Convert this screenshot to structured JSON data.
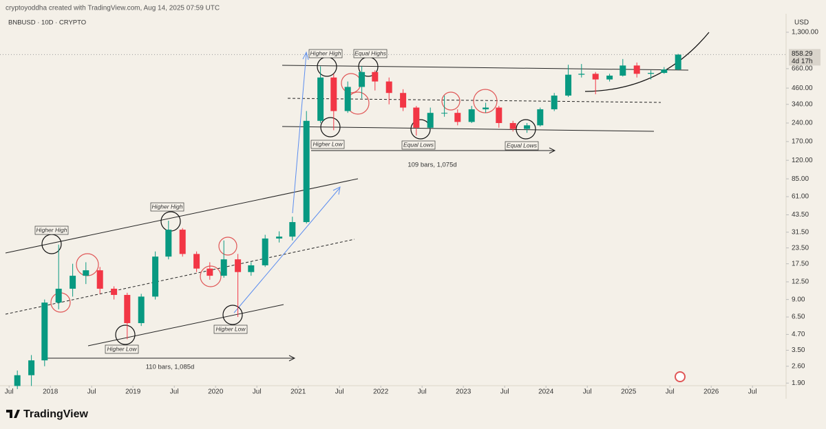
{
  "chart_data": {
    "type": "candlestick",
    "header": "cryptoyoddha created with TradingView.com, Aug 14, 2025 07:59 UTC",
    "title": "BNBUSD · 10D · CRYPTO",
    "currency": "USD",
    "brand": "TradingView",
    "last_price": 858.29,
    "countdown": "4d 17h",
    "log_scale": true,
    "up_color": "#089981",
    "down_color": "#f23645",
    "xlim": [
      2017.39,
      2026.89
    ],
    "ylim": [
      1.72,
      1420
    ],
    "xticks": [
      {
        "value": 2017.5,
        "label": "Jul"
      },
      {
        "value": 2018,
        "label": "2018"
      },
      {
        "value": 2018.5,
        "label": "Jul"
      },
      {
        "value": 2019,
        "label": "2019"
      },
      {
        "value": 2019.5,
        "label": "Jul"
      },
      {
        "value": 2020,
        "label": "2020"
      },
      {
        "value": 2020.5,
        "label": "Jul"
      },
      {
        "value": 2021,
        "label": "2021"
      },
      {
        "value": 2021.5,
        "label": "Jul"
      },
      {
        "value": 2022,
        "label": "2022"
      },
      {
        "value": 2022.5,
        "label": "Jul"
      },
      {
        "value": 2023,
        "label": "2023"
      },
      {
        "value": 2023.5,
        "label": "Jul"
      },
      {
        "value": 2024,
        "label": "2024"
      },
      {
        "value": 2024.5,
        "label": "Jul"
      },
      {
        "value": 2025,
        "label": "2025"
      },
      {
        "value": 2025.5,
        "label": "Jul"
      },
      {
        "value": 2026,
        "label": "2026"
      },
      {
        "value": 2026.5,
        "label": "Jul"
      }
    ],
    "yticks": [
      {
        "value": 1.9,
        "label": "1.90"
      },
      {
        "value": 2.6,
        "label": "2.60"
      },
      {
        "value": 3.5,
        "label": "3.50"
      },
      {
        "value": 4.7,
        "label": "4.70"
      },
      {
        "value": 6.5,
        "label": "6.50"
      },
      {
        "value": 9,
        "label": "9.00"
      },
      {
        "value": 12.5,
        "label": "12.50"
      },
      {
        "value": 17.5,
        "label": "17.50"
      },
      {
        "value": 23.5,
        "label": "23.50"
      },
      {
        "value": 31.5,
        "label": "31.50"
      },
      {
        "value": 43.5,
        "label": "43.50"
      },
      {
        "value": 61,
        "label": "61.00"
      },
      {
        "value": 85,
        "label": "85.00"
      },
      {
        "value": 120,
        "label": "120.00"
      },
      {
        "value": 170,
        "label": "170.00"
      },
      {
        "value": 240,
        "label": "240.00"
      },
      {
        "value": 340,
        "label": "340.00"
      },
      {
        "value": 460,
        "label": "460.00"
      },
      {
        "value": 660,
        "label": "660.00"
      },
      {
        "value": 1300,
        "label": "1,300.00"
      }
    ],
    "x": [
      2017.6,
      2017.77,
      2017.93,
      2018.1,
      2018.27,
      2018.43,
      2018.6,
      2018.77,
      2018.93,
      2019.1,
      2019.27,
      2019.43,
      2019.6,
      2019.77,
      2019.93,
      2020.1,
      2020.27,
      2020.43,
      2020.6,
      2020.77,
      2020.93,
      2021.1,
      2021.27,
      2021.43,
      2021.6,
      2021.77,
      2021.93,
      2022.1,
      2022.27,
      2022.43,
      2022.6,
      2022.77,
      2022.93,
      2023.1,
      2023.27,
      2023.43,
      2023.6,
      2023.77,
      2023.93,
      2024.1,
      2024.27,
      2024.43,
      2024.6,
      2024.77,
      2024.93,
      2025.1,
      2025.27,
      2025.43,
      2025.6
    ],
    "open": [
      1.8,
      2.2,
      2.9,
      8.5,
      11,
      14,
      15.5,
      11,
      9.8,
      5.8,
      9.5,
      20,
      33,
      21,
      16,
      14,
      19,
      15,
      17,
      28,
      29,
      38,
      250,
      560,
      300,
      470,
      620,
      520,
      420,
      320,
      220,
      290,
      290,
      245,
      310,
      320,
      240,
      215,
      230,
      310,
      400,
      590,
      600,
      540,
      580,
      700,
      600,
      610,
      650
    ],
    "high": [
      2.4,
      3.2,
      9,
      25,
      17.5,
      18,
      16.5,
      11.5,
      10.2,
      10,
      22,
      39,
      34,
      22,
      18,
      27,
      21,
      18,
      30,
      32,
      42,
      300,
      690,
      600,
      520,
      690,
      640,
      560,
      450,
      330,
      320,
      400,
      310,
      330,
      350,
      330,
      250,
      240,
      320,
      420,
      710,
      720,
      620,
      600,
      790,
      740,
      640,
      680,
      870
    ],
    "low": [
      1.7,
      1.8,
      2.6,
      7.5,
      9.5,
      12,
      10,
      9,
      4.3,
      5.5,
      9,
      19,
      20,
      15,
      13,
      13.5,
      6.5,
      14,
      16.5,
      26,
      27,
      37,
      240,
      210,
      290,
      380,
      440,
      340,
      300,
      190,
      215,
      270,
      230,
      240,
      290,
      220,
      205,
      200,
      225,
      300,
      390,
      560,
      410,
      520,
      570,
      560,
      540,
      600,
      640
    ],
    "close": [
      2.2,
      2.9,
      8.5,
      11,
      14,
      15.5,
      11,
      9.8,
      5.8,
      9.5,
      20,
      33,
      21,
      16,
      14,
      19,
      15,
      17,
      28,
      29,
      38,
      250,
      560,
      300,
      470,
      620,
      520,
      420,
      320,
      220,
      290,
      290,
      245,
      310,
      320,
      240,
      215,
      230,
      310,
      400,
      590,
      600,
      540,
      580,
      700,
      600,
      610,
      650,
      858.29
    ],
    "annotations": [
      "Higher High",
      "Higher High",
      "Higher Low",
      "Higher Low",
      "Higher High",
      "Equal Highs",
      "Higher Low",
      "Equal Lows",
      "Equal Lows"
    ],
    "measurements": [
      "110 bars, 1,085d",
      "109 bars, 1,075d"
    ]
  }
}
